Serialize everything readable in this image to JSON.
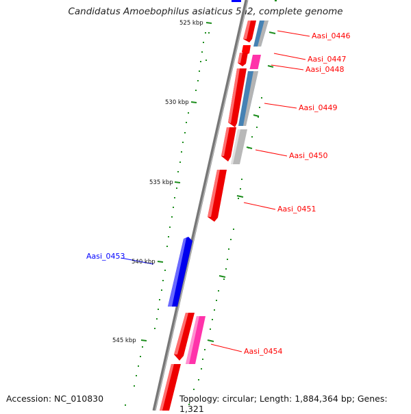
{
  "title": "Candidatus Amoebophilus asiaticus 5a2, complete genome",
  "footer": {
    "accession": "Accession: NC_010830",
    "topology": "Topology: circular; Length: 1,884,364 bp; Genes: 1,321"
  },
  "colors": {
    "forward_gene": "#ff0000",
    "reverse_gene": "#0000ff",
    "rna_gene": "#ff33aa",
    "gc_track": "#4682b4",
    "neutral_track": "#b4b4b4",
    "backbone": "#808080",
    "tick": "#1a8c1a"
  },
  "scale_labels": [
    "525 kbp",
    "530 kbp",
    "535 kbp",
    "540 kbp",
    "545 kbp"
  ],
  "gene_labels": [
    {
      "name": "Aasi_0446",
      "strand": "forward"
    },
    {
      "name": "Aasi_0447",
      "strand": "forward"
    },
    {
      "name": "Aasi_0448",
      "strand": "forward"
    },
    {
      "name": "Aasi_0449",
      "strand": "forward"
    },
    {
      "name": "Aasi_0450",
      "strand": "forward"
    },
    {
      "name": "Aasi_0451",
      "strand": "forward"
    },
    {
      "name": "Aasi_0453",
      "strand": "reverse"
    },
    {
      "name": "Aasi_0454",
      "strand": "forward"
    }
  ]
}
